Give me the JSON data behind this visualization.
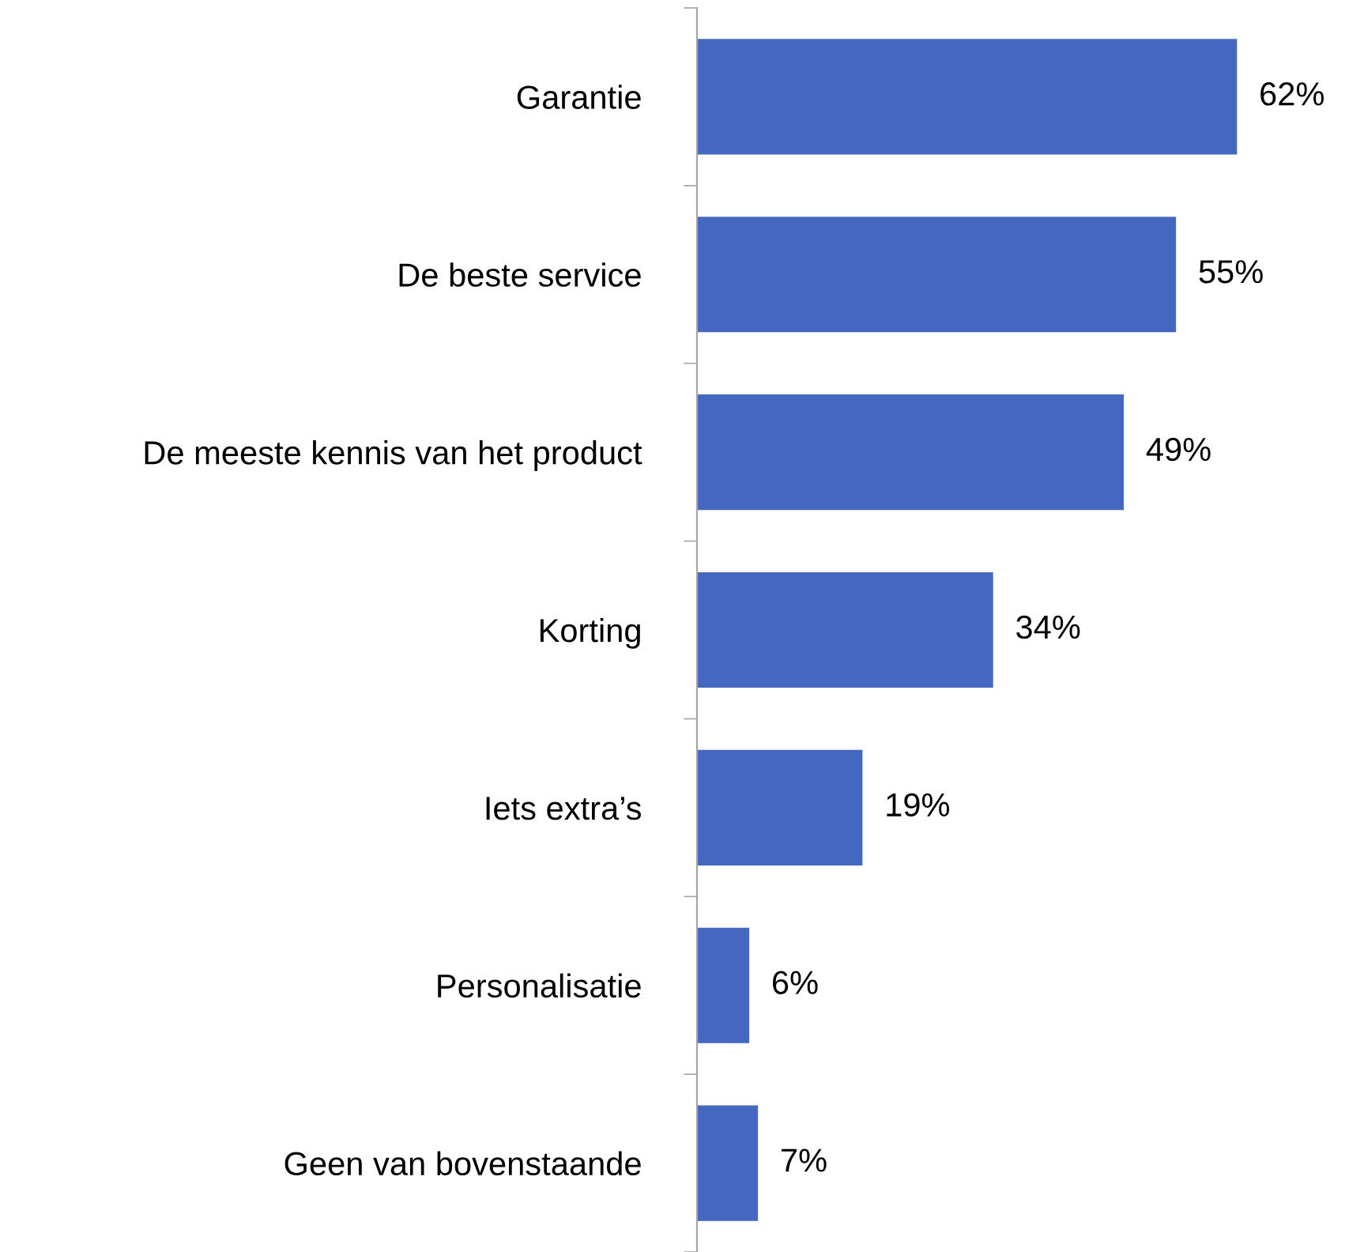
{
  "chart_data": {
    "type": "bar",
    "orientation": "horizontal",
    "categories": [
      "Garantie",
      "De beste service",
      "De meeste kennis van het product",
      "Korting",
      "Iets extra’s",
      "Personalisatie",
      "Geen van bovenstaande"
    ],
    "values": [
      62,
      55,
      49,
      34,
      19,
      6,
      7
    ],
    "value_labels": [
      "62%",
      "55%",
      "49%",
      "34%",
      "19%",
      "6%",
      "7%"
    ],
    "color": "#4468c0",
    "tick_labels": "y"
  }
}
